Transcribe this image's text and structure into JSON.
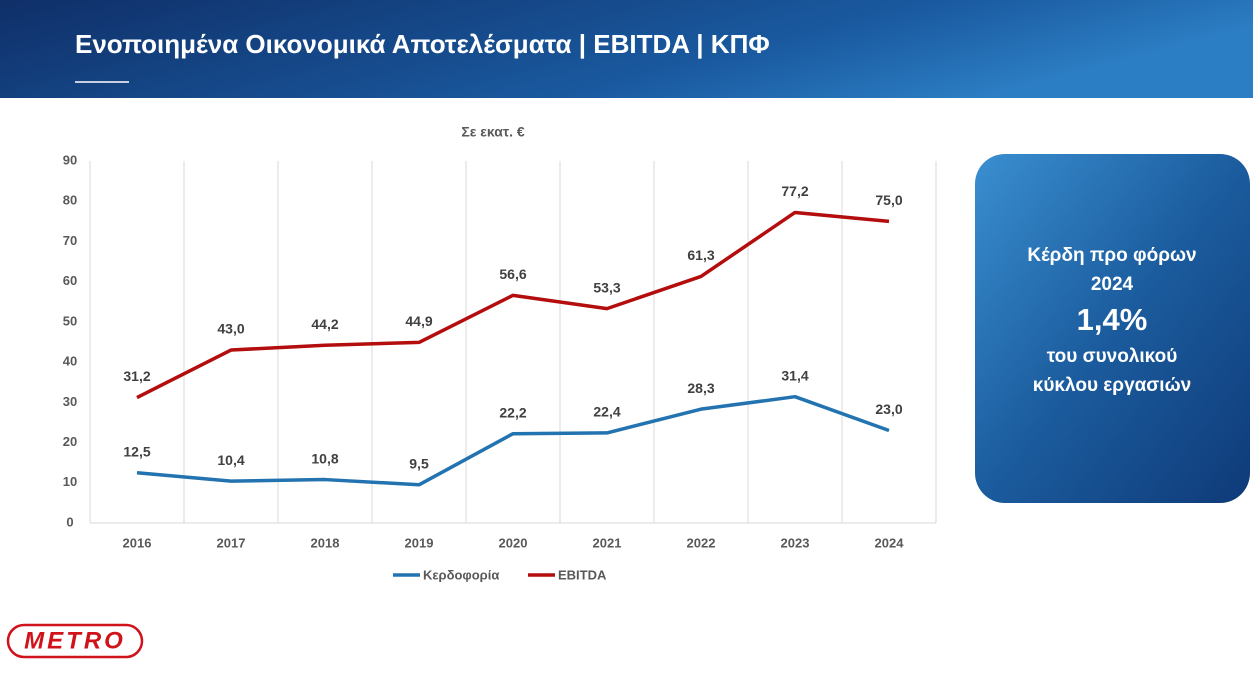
{
  "header": {
    "title": "Ενοποιημένα Οικονομικά Αποτελέσματα | EBITDA | ΚΠΦ"
  },
  "callout": {
    "line1": "Κέρδη προ φόρων",
    "line2": "2024",
    "highlight": "1,4%",
    "line3": "του συνολικού",
    "line4": "κύκλου εργασιών"
  },
  "logo": "METRO",
  "chart_data": {
    "type": "line",
    "subtitle": "Σε εκατ. €",
    "categories": [
      "2016",
      "2017",
      "2018",
      "2019",
      "2020",
      "2021",
      "2022",
      "2023",
      "2024"
    ],
    "series": [
      {
        "name": "Κερδοφορία",
        "color": "#2273b0",
        "values": [
          12.5,
          10.4,
          10.8,
          9.5,
          22.2,
          22.4,
          28.3,
          31.4,
          23.0
        ],
        "value_labels": [
          "12,5",
          "10,4",
          "10,8",
          "9,5",
          "22,2",
          "22,4",
          "28,3",
          "31,4",
          "23,0"
        ]
      },
      {
        "name": "EBITDA",
        "color": "#b40d0d",
        "values": [
          31.2,
          43.0,
          44.2,
          44.9,
          56.6,
          53.3,
          61.3,
          77.2,
          75.0
        ],
        "value_labels": [
          "31,2",
          "43,0",
          "44,2",
          "44,9",
          "56,6",
          "53,3",
          "61,3",
          "77,2",
          "75,0"
        ]
      }
    ],
    "ylim": [
      0,
      90
    ],
    "yticks": [
      0,
      10,
      20,
      30,
      40,
      50,
      60,
      70,
      80,
      90
    ],
    "grid": true,
    "legend": "bottom"
  }
}
